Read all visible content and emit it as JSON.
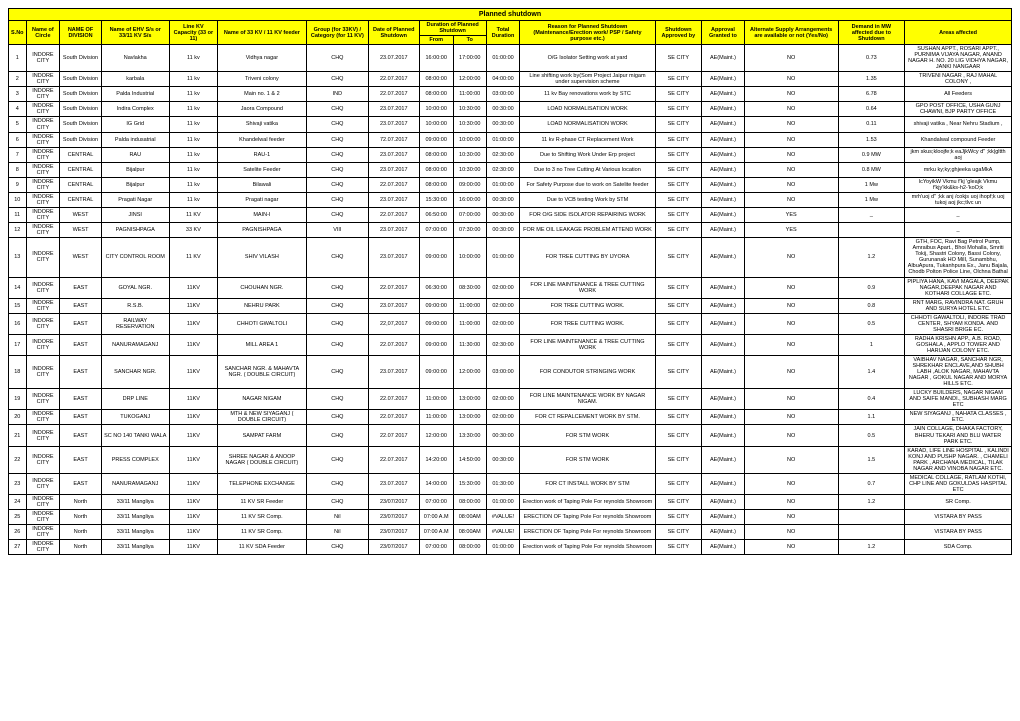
{
  "title": "Planned shutdown",
  "headers": {
    "sno": "S.No",
    "circle": "Name of Circle",
    "division": "NAME OF DIVISION",
    "ehv": "Name of EHV S/s or 33/11 KV S/s",
    "capacity": "Line KV Capacity (33 or 11)",
    "feeder": "Name of 33 KV / 11 KV feeder",
    "group": "Group (for 33KV) / Category (for 11 KV)",
    "date": "Date of Planned Shutdown",
    "from": "From",
    "to": "To",
    "duration": "Total Duration",
    "reason": "Reason for Planned Shutdown (Maintenance/Erection work/ PSP / Safety purpose etc.)",
    "shutdown_approved": "Shutdown Approved by",
    "approval_granted": "Approval Granted to",
    "alternate": "Alternate Supply Arrangements are available or not (Yes/No)",
    "demand": "Demand in MW affected due to Shutdown",
    "areas": "Areas affected",
    "dur_header": "Duration of Planned Shutdown"
  },
  "rows": [
    {
      "n": "1",
      "circle": "INDORE CITY",
      "div": "South Division",
      "ehv": "Navlakha",
      "cap": "11 kv",
      "feeder": "Vidhya nagar",
      "grp": "CHQ",
      "date": "23.07.2017",
      "from": "16:00:00",
      "to": "17:00:00",
      "dur": "01:00:00",
      "reason": "O/G Isolator Setting work at yard",
      "sa": "SE CITY",
      "ag": "AE(Maint.)",
      "alt": "NO",
      "dem": "0.73",
      "areas": "SUSHAN APPT., ROSARI APPT., PURNIMA VIJAYA NAGAR, ANAND NAGAR H. NO. 20 LIG VIDHYA NAGAR, JANKI NANGAAR"
    },
    {
      "n": "2",
      "circle": "INDORE CITY",
      "div": "South Division",
      "ehv": "karbala",
      "cap": "11 kv",
      "feeder": "Triveni colony",
      "grp": "CHQ",
      "date": "22.07.2017",
      "from": "08:00:00",
      "to": "12:00:00",
      "dur": "04:00:00",
      "reason": "Line shifting work by(Som Project Jaipur migam under supervision scheme",
      "sa": "SE CITY",
      "ag": "AE(Maint.)",
      "alt": "NO",
      "dem": "1.35",
      "areas": "TRIVENI NAGAR , RAJ MAHAL COLONY ,"
    },
    {
      "n": "3",
      "circle": "INDORE CITY",
      "div": "South Division",
      "ehv": "Palda Industrial",
      "cap": "11 kv",
      "feeder": "Main no. 1 & 2",
      "grp": "IND",
      "date": "22.07.2017",
      "from": "08:00:00",
      "to": "11:00:00",
      "dur": "03:00:00",
      "reason": "11 kv Bay renovations work by STC",
      "sa": "SE CITY",
      "ag": "AE(Maint.)",
      "alt": "NO",
      "dem": "6.78",
      "areas": "All Feeders"
    },
    {
      "n": "4",
      "circle": "INDORE CITY",
      "div": "South Division",
      "ehv": "Indira Complex",
      "cap": "11 kv",
      "feeder": "Jaora Compound",
      "grp": "CHQ",
      "date": "23.07.2017",
      "from": "10:00:00",
      "to": "10:30:00",
      "dur": "00:30:00",
      "reason": "LOAD NORMALISATION WORK",
      "sa": "SE CITY",
      "ag": "AE(Maint.)",
      "alt": "NO",
      "dem": "0.64",
      "areas": "GPO POST OFFICE, USHA GUNJ CHAWNI, BJP PARTY OFFICE"
    },
    {
      "n": "5",
      "circle": "INDORE CITY",
      "div": "South Division",
      "ehv": "IG Grid",
      "cap": "11 kv",
      "feeder": "Shivaji vatika",
      "grp": "CHQ",
      "date": "23.07.2017",
      "from": "10:00:00",
      "to": "10:30:00",
      "dur": "00:30:00",
      "reason": "LOAD NORMALISATION WORK",
      "sa": "SE CITY",
      "ag": "AE(Maint.)",
      "alt": "NO",
      "dem": "0.11",
      "areas": "shivaji vatika , Near Nehru Stadium ,"
    },
    {
      "n": "6",
      "circle": "INDORE CITY",
      "div": "South Division",
      "ehv": "Palda indusatrial",
      "cap": "11 kv",
      "feeder": "Khandelwal feeder",
      "grp": "CHQ",
      "date": "72.07.2017",
      "from": "09:00:00",
      "to": "10:00:00",
      "dur": "01:00:00",
      "reason": "11 kv R-phase CT Replacement Work",
      "sa": "SE CITY",
      "ag": "AE(Maint.)",
      "alt": "NO",
      "dem": "1.53",
      "areas": "Khandalwal compound Feeder"
    },
    {
      "n": "7",
      "circle": "INDORE CITY",
      "div": "CENTRAL",
      "ehv": "RAU",
      "cap": "11 kv",
      "feeder": "RAU-1",
      "grp": "CHQ",
      "date": "23.07.2017",
      "from": "08:00:00",
      "to": "10:30:00",
      "dur": "02:30:00",
      "reason": "Due to Shifting Work Under Erp project",
      "sa": "SE CITY",
      "ag": "AE(Maint.)",
      "alt": "NO",
      "dem": "0.9 MW",
      "areas": "jkm skus;kloojfe;k eaJjkWcy d\" ;kk|gltth aoj"
    },
    {
      "n": "8",
      "circle": "INDORE CITY",
      "div": "CENTRAL",
      "ehv": "Bijalpur",
      "cap": "11 kv",
      "feeder": "Satelite Feeder",
      "grp": "CHQ",
      "date": "23.07.2017",
      "from": "08:00:00",
      "to": "10:30:00",
      "dur": "02:30:00",
      "reason": "Due to 3 no Tree Cutting At Various location",
      "sa": "SE CITY",
      "ag": "AE(Maint.)",
      "alt": "NO",
      "dem": "0.8 MW",
      "areas": "mrku ky;ky;ghjeeka ugaMkA"
    },
    {
      "n": "9",
      "circle": "INDORE CITY",
      "div": "CENTRAL",
      "ehv": "Bijalpur",
      "cap": "11 kv",
      "feeder": "Bilawali",
      "grp": "CHQ",
      "date": "22.07.2017",
      "from": "08:00:00",
      "to": "09:00:00",
      "dur": "01:00:00",
      "reason": "For Safety Purpose due to work on Satelite feeder",
      "sa": "SE CITY",
      "ag": "AE(Maint.)",
      "alt": "NO",
      "dem": "1 Mw",
      "areas": "lcYoyikW Vkmu f'kj 'gleajk Vkmu f'kjy'kk&ks-h2-'koO;k"
    },
    {
      "n": "10",
      "circle": "INDORE CITY",
      "div": "CENTRAL",
      "ehv": "Pragati Nagar",
      "cap": "11 kv",
      "feeder": "Pragati nagar",
      "grp": "CHQ",
      "date": "23.07.2017",
      "from": "15:30:00",
      "to": "16:00:00",
      "dur": "00:30:00",
      "reason": "Due to VCB testing Work by STM",
      "sa": "SE CITY",
      "ag": "AE(Maint.)",
      "alt": "NO",
      "dem": "1 Mw",
      "areas": "mrh'uoj d\" ;kk anj /cokjs uoj ihopf;k uoj tukoj aoj jkc;tlvc un"
    },
    {
      "n": "11",
      "circle": "INDORE CITY",
      "div": "WEST",
      "ehv": "JINSI",
      "cap": "11 KV",
      "feeder": "MAIN-I",
      "grp": "CHQ",
      "date": "22.07.2017",
      "from": "06:50:00",
      "to": "07:00:00",
      "dur": "00:30:00",
      "reason": "FOR O/G SIDE ISOLATOR REPAIRING WORK",
      "sa": "SE CITY",
      "ag": "AE(Maint.)",
      "alt": "YES",
      "dem": "_",
      "areas": "_"
    },
    {
      "n": "12",
      "circle": "INDORE CITY",
      "div": "WEST",
      "ehv": "PAGNISHPAGA",
      "cap": "33 KV",
      "feeder": "PAGNISHPAGA",
      "grp": "VIII",
      "date": "23.07.2017",
      "from": "07:00:00",
      "to": "07:30:00",
      "dur": "00:30:00",
      "reason": "FOR ME OIL LEAKAGE PROBLEM ATTEND WORK",
      "sa": "SE CITY",
      "ag": "AE(Maint.)",
      "alt": "YES",
      "dem": "",
      "areas": "_"
    },
    {
      "n": "13",
      "circle": "INDORE CITY",
      "div": "WEST",
      "ehv": "CITY CONTROL ROOM",
      "cap": "11 KV",
      "feeder": "SHIV VILASH",
      "grp": "CHQ",
      "date": "23.07.2017",
      "from": "09:00:00",
      "to": "10:00:00",
      "dur": "01:00:00",
      "reason": "FOR TREE CUTTING BY IJYORA",
      "sa": "SE CITY",
      "ag": "AE(Maint.)",
      "alt": "NO",
      "dem": "1.2",
      "areas": "GTH, FOC, Ravi Bag Petrol Pump, Amraibus Apart., Bhoi Mohalla, Smriti Tokij, Shastri Colony, Bassi Colony, Gurunanak HO MilI, Sunambhu, AlbuApura, Tukanhpura Ex., Janu Bajala, Chodb Polton Police Line, Olchna Bathal"
    },
    {
      "n": "14",
      "circle": "INDORE CITY",
      "div": "EAST",
      "ehv": "GOYAL NGR.",
      "cap": "11KV",
      "feeder": "CHOUHAN NGR.",
      "grp": "CHQ",
      "date": "22.07.2017",
      "from": "06:30:00",
      "to": "08:30:00",
      "dur": "02:00:00",
      "reason": "FOR LINE MAINTENANCE & TREE CUTTING WORK",
      "sa": "SE CITY",
      "ag": "AE(Maint.)",
      "alt": "NO",
      "dem": "0.9",
      "areas": "PIPLIYA HANA, KAVI MAGALA, DEEPAK NAGAR,DEEPAK NAGAR AND KOTHARI COLLAGE ETC."
    },
    {
      "n": "15",
      "circle": "INDORE CITY",
      "div": "EAST",
      "ehv": "R.S.B.",
      "cap": "11KV",
      "feeder": "NEHRU PARK",
      "grp": "CHQ",
      "date": "23.07.2017",
      "from": "09:00:00",
      "to": "11:00:00",
      "dur": "02:00:00",
      "reason": "FOR TREE CUTTING WORK.",
      "sa": "SE CITY",
      "ag": "AE(Maint.)",
      "alt": "NO",
      "dem": "0.8",
      "areas": "RNT MARG, RAVINDRA NAT. GRUH AND SURYA HOTEL ETC."
    },
    {
      "n": "16",
      "circle": "INDORE CITY",
      "div": "EAST",
      "ehv": "RAILWAY RESERVATION",
      "cap": "11KV",
      "feeder": "CHHOTI GWALTOLI",
      "grp": "CHQ",
      "date": "22,07,2017",
      "from": "09:00:00",
      "to": "11:00:00",
      "dur": "02:00:00",
      "reason": "FOR TREE CUTTING WORK.",
      "sa": "SE CITY",
      "ag": "AE(Maint.)",
      "alt": "NO",
      "dem": "0.5",
      "areas": "CHHOTI GAWALTOLI, INDORE TRAD CENTER, SHYAM KONDA. AND SHASRI BRIGE EC."
    },
    {
      "n": "17",
      "circle": "INDORE CITY",
      "div": "EAST",
      "ehv": "NANURAMAGANJ",
      "cap": "11KV",
      "feeder": "MILL AREA 1",
      "grp": "CHQ",
      "date": "22.07.2017",
      "from": "09:00:00",
      "to": "11:30:00",
      "dur": "02:30:00",
      "reason": "FOR LINE MAINTENANCE & TREE CUTTING WORK",
      "sa": "SE CITY",
      "ag": "AE(Maint.)",
      "alt": "NO",
      "dem": "1",
      "areas": "RADHA KRISHN APP., A.B. ROAD, GOSHALA , APPLO TOWER AND HARIJAN COLONY ETC."
    },
    {
      "n": "18",
      "circle": "INDORE CITY",
      "div": "EAST",
      "ehv": "SANCHAR NGR.",
      "cap": "11KV",
      "feeder": "SANCHAR NGR. & MAHAVTA NGR. ( DOUBLE CIRCUIT)",
      "grp": "CHQ",
      "date": "23.07.2017",
      "from": "09:00:00",
      "to": "12:00:00",
      "dur": "03:00:00",
      "reason": "FOR CONDUTOR STRINGING WORK",
      "sa": "SE CITY",
      "ag": "AE(Maint.)",
      "alt": "NO",
      "dem": "1.4",
      "areas": "VAIBHAV NAGAR, SANCHAR NGR, SHREKHAR ENCLAVE,AND SHUBH LABH ,ALOK NAGAR, MAHAVTA NAGAR , GOKUL NAGAR AND MORYA HILLS ETC."
    },
    {
      "n": "19",
      "circle": "INDORE CITY",
      "div": "EAST",
      "ehv": "DRP LINE",
      "cap": "11KV",
      "feeder": "NAGAR NIGAM",
      "grp": "CHQ",
      "date": "22.07.2017",
      "from": "11:00:00",
      "to": "13:00:00",
      "dur": "02:00:00",
      "reason": "FOR LINE MAINTENANCE WORK BY NAGAR NIGAM.",
      "sa": "SE CITY",
      "ag": "AE(Maint.)",
      "alt": "NO",
      "dem": "0.4",
      "areas": "LUCKY BUILDERS, NAGAR NIGAM AND SAIFE MANDI., SUBHASH MARG ETC"
    },
    {
      "n": "20",
      "circle": "INDORE CITY",
      "div": "EAST",
      "ehv": "TUKOGANJ",
      "cap": "11KV",
      "feeder": "MTH & NEW SIYAGANJ ( DOUBLE CIRCUIT)",
      "grp": "CHQ",
      "date": "22.07.2017",
      "from": "11:00:00",
      "to": "13:00:00",
      "dur": "02:00:00",
      "reason": "FOR CT REPALCEMENT WORK BY STM.",
      "sa": "SE CITY",
      "ag": "AE(Maint.)",
      "alt": "NO",
      "dem": "1.1",
      "areas": "NEW SIYAGANJ , NAHATA CLASSES , ETC."
    },
    {
      "n": "21",
      "circle": "INDORE CITY",
      "div": "EAST",
      "ehv": "SC NO 140 TANKI WALA",
      "cap": "11KV",
      "feeder": "SAMPAT FARM",
      "grp": "CHQ",
      "date": "22.07 2017",
      "from": "12:00:00",
      "to": "13:30:00",
      "dur": "00:30:00",
      "reason": "FOR STM WORK",
      "sa": "SE CITY",
      "ag": "AE(Maint.)",
      "alt": "NO",
      "dem": "0.5",
      "areas": "JAIN COLLAGE, DHAKA FACTORY, BHERU TEKARI AND BLU WATER PARK ETC."
    },
    {
      "n": "22",
      "circle": "INDORE CITY",
      "div": "EAST",
      "ehv": "PRESS COMPLEX",
      "cap": "11KV",
      "feeder": "SHREE NAGAR & ANOOP NAGAR ( DOUBLE CIRCUIT)",
      "grp": "CHQ",
      "date": "22.07.2017",
      "from": "14:20:00",
      "to": "14:50:00",
      "dur": "00:30:00",
      "reason": "FOR STM WORK",
      "sa": "SE CITY",
      "ag": "AE(Maint.)",
      "alt": "NO",
      "dem": "1.5",
      "areas": "KARAD, LIFE LINE HOSPITAL , KALINDI KONJ AND PUSHP NAGAR. , CHAMELI PARK , ARCHANA MEDICAL, TILAK NAGAR AND VINOBA NAGAR ETC."
    },
    {
      "n": "23",
      "circle": "INDORE CITY",
      "div": "EAST",
      "ehv": "NANURAMAGANJ",
      "cap": "11KV",
      "feeder": "TELEPHONE EXCHANGE",
      "grp": "CHQ",
      "date": "23.07.2017",
      "from": "14:00:00",
      "to": "15:30:00",
      "dur": "01:30:00",
      "reason": "FOR CT INSTALL WORK BY STM",
      "sa": "SE CITY",
      "ag": "AE(Maint.)",
      "alt": "NO",
      "dem": "0.7",
      "areas": "MEDICAL COLLAGE, RATLAM KOTHI, CHP LINE AND GOKULDAS HASPITAL ETC"
    },
    {
      "n": "24",
      "circle": "INDORE CITY",
      "div": "North",
      "ehv": "33/11 Mangliya",
      "cap": "11KV",
      "feeder": "11 KV SR Feeder",
      "grp": "CHQ",
      "date": "23/07/2017",
      "from": "07:00:00",
      "to": "08:00:00",
      "dur": "01:00:00",
      "reason": "Erection work of Taping Pole For reynolds Showroom",
      "sa": "SE CITY",
      "ag": "AE(Maint.)",
      "alt": "NO",
      "dem": "1.2",
      "areas": "SR Comp."
    },
    {
      "n": "25",
      "circle": "INDORE CITY",
      "div": "North",
      "ehv": "33/11 Mangliya",
      "cap": "11KV",
      "feeder": "11 KV SR Comp.",
      "grp": "Nil",
      "date": "23/07/2017",
      "from": "07:00 A.M",
      "to": "08:00AM",
      "dur": "#VALUE!",
      "reason": "ERECTION OF Taping Pole For reynolds Showroom",
      "sa": "SE CITY",
      "ag": "AE(Maint.)",
      "alt": "NO",
      "dem": "",
      "areas": "VISTARA BY PASS"
    },
    {
      "n": "26",
      "circle": "INDORE CITY",
      "div": "North",
      "ehv": "33/11 Mangliya",
      "cap": "11KV",
      "feeder": "11 KV SR Comp.",
      "grp": "Nil",
      "date": "23/07/2017",
      "from": "07:00 A.M",
      "to": "08:00AM",
      "dur": "#VALUE!",
      "reason": "ERECTION OF Taping Pole For reynolds Showroom",
      "sa": "SE CITY",
      "ag": "AE(Maint.)",
      "alt": "NO",
      "dem": "",
      "areas": "VISTARA BY PASS"
    },
    {
      "n": "27",
      "circle": "INDORE CITY",
      "div": "North",
      "ehv": "33/11 Mangliya",
      "cap": "11KV",
      "feeder": "11 KV SDA Feeder",
      "grp": "CHQ",
      "date": "23/07/2017",
      "from": "07:00:00",
      "to": "08:00:00",
      "dur": "01:00:00",
      "reason": "Erection work of Taping Pole For reynolds Showroom",
      "sa": "SE CITY",
      "ag": "AE(Maint.)",
      "alt": "NO",
      "dem": "1.2",
      "areas": "SDA Comp."
    }
  ]
}
